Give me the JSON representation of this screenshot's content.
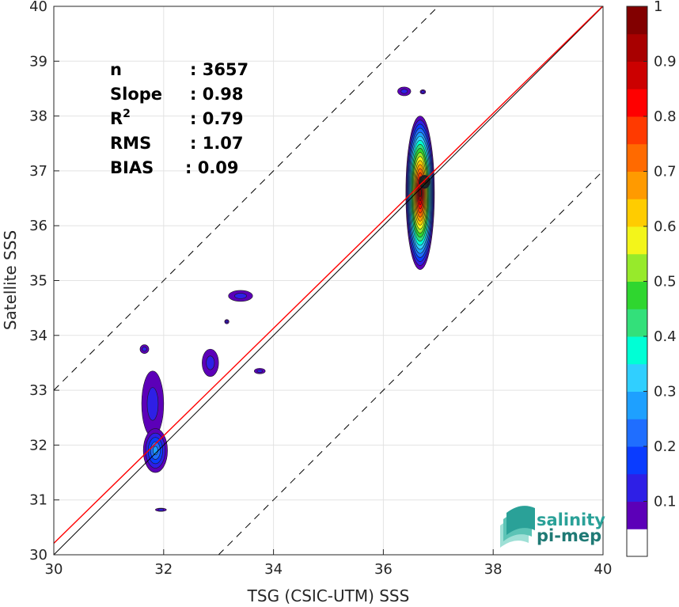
{
  "chart_data": {
    "type": "contour",
    "xlabel": "TSG (CSIC-UTM) SSS",
    "ylabel": "Satellite SSS",
    "xlim": [
      30,
      40
    ],
    "ylim": [
      30,
      40
    ],
    "xticks": [
      "30",
      "32",
      "34",
      "36",
      "38",
      "40"
    ],
    "yticks": [
      "30",
      "31",
      "32",
      "33",
      "34",
      "35",
      "36",
      "37",
      "38",
      "39",
      "40"
    ],
    "grid": true,
    "stats": [
      {
        "label": "n",
        "value": ": 3657"
      },
      {
        "label": "Slope",
        "value": ": 0.98"
      },
      {
        "label": "R",
        "sup": "2",
        "value": ": 0.79"
      },
      {
        "label": "RMS",
        "value": ": 1.07"
      },
      {
        "label": "BIAS",
        "value": ": 0.09"
      }
    ],
    "lines": [
      {
        "kind": "one-to-one",
        "color": "#000000",
        "style": "solid"
      },
      {
        "kind": "regression",
        "slope": 0.98,
        "intercept": 0.81,
        "color": "#ff0000",
        "style": "solid"
      },
      {
        "kind": "upper-bound",
        "offset": 3,
        "color": "#000000",
        "style": "dashed"
      },
      {
        "kind": "lower-bound",
        "offset": -3,
        "color": "#000000",
        "style": "dashed"
      }
    ],
    "colorbar": {
      "range": [
        0,
        1
      ],
      "ticks": [
        "0.1",
        "0.2",
        "0.3",
        "0.4",
        "0.5",
        "0.6",
        "0.7",
        "0.8",
        "0.9",
        "1"
      ],
      "colors": [
        "#ffffff",
        "#5c00b8",
        "#2e1fe6",
        "#0a3cff",
        "#1f6eff",
        "#1ea0ff",
        "#30cfff",
        "#00ffd5",
        "#33e07a",
        "#2fd62f",
        "#97ea2b",
        "#f3f51a",
        "#ffcc00",
        "#ff9a00",
        "#ff6a00",
        "#ff3a00",
        "#ff0000",
        "#cc0000",
        "#a80000",
        "#820000"
      ]
    },
    "density_clusters": [
      {
        "cx": 36.67,
        "cy": 36.6,
        "rx": 0.26,
        "ry": 1.4,
        "peak": 1.0
      },
      {
        "cx": 36.75,
        "cy": 36.8,
        "rx": 0.1,
        "ry": 0.12,
        "peak": 1.0
      },
      {
        "cx": 36.38,
        "cy": 38.45,
        "rx": 0.12,
        "ry": 0.08,
        "peak": 0.08
      },
      {
        "cx": 36.72,
        "cy": 38.44,
        "rx": 0.05,
        "ry": 0.04,
        "peak": 0.08
      },
      {
        "cx": 33.4,
        "cy": 34.72,
        "rx": 0.22,
        "ry": 0.1,
        "peak": 0.08
      },
      {
        "cx": 33.15,
        "cy": 34.25,
        "rx": 0.04,
        "ry": 0.04,
        "peak": 0.08
      },
      {
        "cx": 32.85,
        "cy": 33.5,
        "rx": 0.15,
        "ry": 0.25,
        "peak": 0.1
      },
      {
        "cx": 33.75,
        "cy": 33.35,
        "rx": 0.1,
        "ry": 0.05,
        "peak": 0.08
      },
      {
        "cx": 31.65,
        "cy": 33.75,
        "rx": 0.08,
        "ry": 0.08,
        "peak": 0.08
      },
      {
        "cx": 31.8,
        "cy": 32.75,
        "rx": 0.2,
        "ry": 0.6,
        "peak": 0.12
      },
      {
        "cx": 31.85,
        "cy": 31.9,
        "rx": 0.22,
        "ry": 0.4,
        "peak": 0.25
      },
      {
        "cx": 31.95,
        "cy": 30.82,
        "rx": 0.1,
        "ry": 0.03,
        "peak": 0.08
      }
    ]
  },
  "logo": {
    "line1": "salinity",
    "line2": "pi-mep"
  }
}
